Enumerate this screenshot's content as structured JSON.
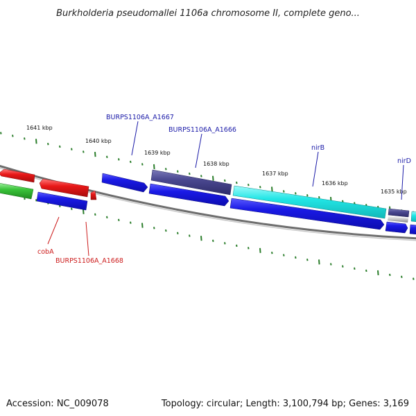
{
  "title": "Burkholderia pseudomallei 1106a chromosome II, complete geno...",
  "footer": {
    "accession": "Accession: NC_009078",
    "summary": "Topology: circular; Length: 3,100,794 bp; Genes: 3,169"
  },
  "colors": {
    "tick": "#2a7d2a",
    "backbone": "#6e6e6e",
    "label_blue": "#1a1aa8",
    "label_red": "#cc1a1a",
    "gene_blue": "#1a1ae0",
    "gene_navy": "#4a4890",
    "gene_cyan": "#22e0e0",
    "gene_red": "#e01818",
    "gene_green": "#3ac43a"
  },
  "scale": {
    "unit": "kbp",
    "ticks": [
      {
        "kbp": 1641,
        "label": "1641 kbp"
      },
      {
        "kbp": 1640,
        "label": "1640 kbp"
      },
      {
        "kbp": 1639,
        "label": "1639 kbp"
      },
      {
        "kbp": 1638,
        "label": "1638 kbp"
      },
      {
        "kbp": 1637,
        "label": "1637 kbp"
      },
      {
        "kbp": 1636,
        "label": "1636 kbp"
      },
      {
        "kbp": 1635,
        "label": "1635 kbp"
      }
    ]
  },
  "gene_labels": [
    {
      "name": "BURPS1106A_A1667",
      "color": "#1a1aa8"
    },
    {
      "name": "BURPS1106A_A1666",
      "color": "#1a1aa8"
    },
    {
      "name": "nirB",
      "color": "#1a1aa8"
    },
    {
      "name": "nirD",
      "color": "#1a1aa8"
    },
    {
      "name": "cobA",
      "color": "#cc1a1a"
    },
    {
      "name": "BURPS1106A_A1668",
      "color": "#cc1a1a"
    }
  ]
}
